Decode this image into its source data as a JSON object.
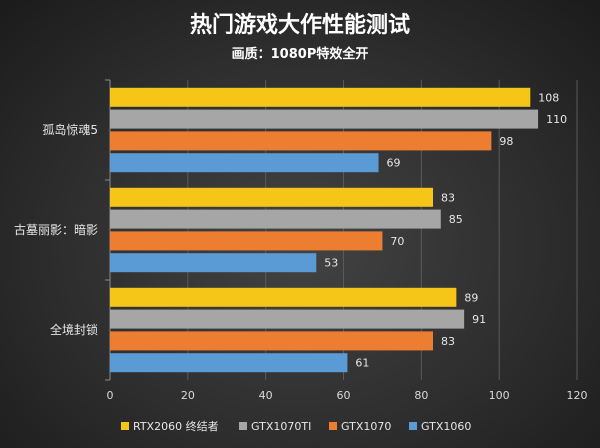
{
  "chart_data": {
    "type": "bar",
    "orientation": "horizontal",
    "title": "热门游戏大作性能测试",
    "subtitle": "画质：1080P特效全开",
    "categories": [
      "孤岛惊魂5",
      "古墓丽影：暗影",
      "全境封锁"
    ],
    "series": [
      {
        "name": "RTX2060 终结者",
        "color": "#f5c518",
        "values": [
          108,
          83,
          89
        ]
      },
      {
        "name": "GTX1070TI",
        "color": "#a6a6a6",
        "values": [
          110,
          85,
          91
        ]
      },
      {
        "name": "GTX1070",
        "color": "#ed7d31",
        "values": [
          98,
          70,
          83
        ]
      },
      {
        "name": "GTX1060",
        "color": "#5b9bd5",
        "values": [
          69,
          53,
          61
        ]
      }
    ],
    "xlim": [
      0,
      120
    ],
    "xticks": [
      "0",
      "20",
      "40",
      "60",
      "80",
      "100",
      "120"
    ],
    "grid": true,
    "legend_position": "bottom"
  }
}
